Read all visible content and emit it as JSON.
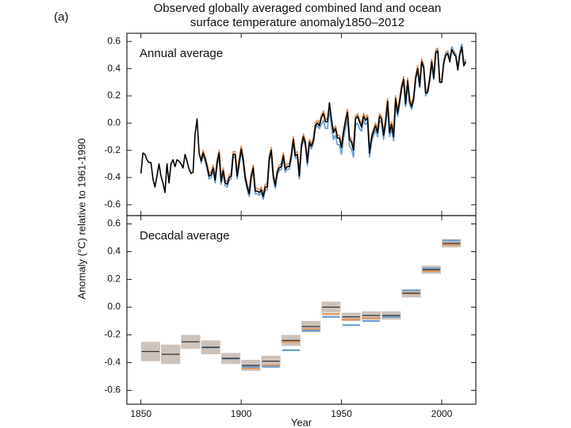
{
  "figure": {
    "label": "(a)",
    "title": [
      "Observed globally averaged combined land and ocean",
      "surface temperature anomaly1850–2012"
    ],
    "ylabel": "Anomaly (°C) relative to 1961-1990"
  },
  "chart_data": [
    {
      "type": "line",
      "annotation": "Annual average",
      "xlim": [
        1843,
        2017
      ],
      "xticks": [
        1850,
        1900,
        1950,
        2000
      ],
      "xtick_labels": false,
      "ylim": [
        -0.68,
        0.66
      ],
      "yticks": [
        -0.6,
        -0.4,
        -0.2,
        {
          "value": 0,
          "label": "0.0"
        },
        0.2,
        0.4,
        0.6
      ],
      "x": [
        1850,
        1851,
        1852,
        1853,
        1854,
        1855,
        1856,
        1857,
        1858,
        1859,
        1860,
        1861,
        1862,
        1863,
        1864,
        1865,
        1866,
        1867,
        1868,
        1869,
        1870,
        1871,
        1872,
        1873,
        1874,
        1875,
        1876,
        1877,
        1878,
        1879,
        1880,
        1881,
        1882,
        1883,
        1884,
        1885,
        1886,
        1887,
        1888,
        1889,
        1890,
        1891,
        1892,
        1893,
        1894,
        1895,
        1896,
        1897,
        1898,
        1899,
        1900,
        1901,
        1902,
        1903,
        1904,
        1905,
        1906,
        1907,
        1908,
        1909,
        1910,
        1911,
        1912,
        1913,
        1914,
        1915,
        1916,
        1917,
        1918,
        1919,
        1920,
        1921,
        1922,
        1923,
        1924,
        1925,
        1926,
        1927,
        1928,
        1929,
        1930,
        1931,
        1932,
        1933,
        1934,
        1935,
        1936,
        1937,
        1938,
        1939,
        1940,
        1941,
        1942,
        1943,
        1944,
        1945,
        1946,
        1947,
        1948,
        1949,
        1950,
        1951,
        1952,
        1953,
        1954,
        1955,
        1956,
        1957,
        1958,
        1959,
        1960,
        1961,
        1962,
        1963,
        1964,
        1965,
        1966,
        1967,
        1968,
        1969,
        1970,
        1971,
        1972,
        1973,
        1974,
        1975,
        1976,
        1977,
        1978,
        1979,
        1980,
        1981,
        1982,
        1983,
        1984,
        1985,
        1986,
        1987,
        1988,
        1989,
        1990,
        1991,
        1992,
        1993,
        1994,
        1995,
        1996,
        1997,
        1998,
        1999,
        2000,
        2001,
        2002,
        2003,
        2004,
        2005,
        2006,
        2007,
        2008,
        2009,
        2010,
        2011,
        2012
      ],
      "series": [
        {
          "color": "#e0915a",
          "values": [
            null,
            null,
            null,
            null,
            null,
            null,
            null,
            null,
            null,
            null,
            null,
            null,
            null,
            null,
            null,
            null,
            null,
            null,
            null,
            null,
            null,
            null,
            null,
            null,
            null,
            null,
            null,
            null,
            null,
            null,
            -0.26,
            -0.2,
            -0.25,
            -0.3,
            -0.37,
            -0.36,
            -0.31,
            -0.4,
            -0.27,
            -0.2,
            -0.41,
            -0.33,
            -0.42,
            -0.43,
            -0.38,
            -0.37,
            -0.21,
            -0.21,
            -0.37,
            -0.27,
            -0.17,
            -0.25,
            -0.38,
            -0.45,
            -0.5,
            -0.37,
            -0.31,
            -0.48,
            -0.48,
            -0.49,
            -0.47,
            -0.52,
            -0.45,
            -0.45,
            -0.24,
            -0.18,
            -0.37,
            -0.44,
            -0.34,
            -0.31,
            -0.3,
            -0.22,
            -0.32,
            -0.3,
            -0.3,
            -0.22,
            -0.1,
            -0.22,
            -0.21,
            -0.37,
            -0.15,
            -0.08,
            -0.13,
            -0.27,
            -0.12,
            -0.15,
            -0.11,
            0.0,
            0.02,
            0.0,
            0.06,
            0.09,
            0.03,
            0.03,
            0.1,
            0.0,
            -0.05,
            -0.02,
            -0.09,
            -0.09,
            -0.16,
            -0.05,
            0.03,
            0.1,
            -0.1,
            -0.12,
            -0.18,
            0.05,
            0.07,
            0.03,
            -0.01,
            0.07,
            0.04,
            0.06,
            -0.2,
            -0.09,
            -0.04,
            0.0,
            -0.05,
            0.07,
            0.05,
            -0.07,
            0.03,
            0.18,
            -0.05,
            0.01,
            -0.08,
            0.2,
            0.09,
            0.18,
            0.28,
            0.34,
            0.16,
            0.33,
            0.18,
            0.14,
            0.2,
            0.35,
            0.42,
            0.29,
            0.47,
            0.43,
            0.24,
            0.25,
            0.34,
            0.47,
            0.35,
            0.54,
            0.55,
            0.32,
            0.32,
            0.46,
            0.52,
            0.53,
            0.47,
            0.56,
            0.53,
            0.51,
            0.41,
            0.52,
            0.58,
            0.44,
            0.47
          ]
        },
        {
          "color": "#6d9fd0",
          "values": [
            null,
            null,
            null,
            null,
            null,
            null,
            null,
            null,
            null,
            null,
            null,
            null,
            null,
            null,
            null,
            null,
            null,
            null,
            null,
            null,
            null,
            null,
            null,
            null,
            null,
            null,
            null,
            null,
            null,
            null,
            -0.3,
            -0.24,
            -0.28,
            -0.34,
            -0.41,
            -0.4,
            -0.35,
            -0.44,
            -0.31,
            -0.24,
            -0.45,
            -0.37,
            -0.46,
            -0.47,
            -0.42,
            -0.41,
            -0.25,
            -0.25,
            -0.41,
            -0.31,
            -0.21,
            -0.29,
            -0.42,
            -0.49,
            -0.54,
            -0.41,
            -0.35,
            -0.52,
            -0.52,
            -0.53,
            -0.51,
            -0.56,
            -0.49,
            -0.49,
            -0.28,
            -0.22,
            -0.41,
            -0.48,
            -0.38,
            -0.35,
            -0.34,
            -0.26,
            -0.36,
            -0.34,
            -0.34,
            -0.26,
            -0.14,
            -0.26,
            -0.25,
            -0.41,
            -0.19,
            -0.12,
            -0.17,
            -0.31,
            -0.16,
            -0.19,
            -0.15,
            -0.04,
            -0.02,
            -0.04,
            -0.01,
            0.02,
            -0.04,
            -0.04,
            0.1,
            -0.02,
            -0.12,
            -0.09,
            -0.16,
            -0.16,
            -0.23,
            -0.12,
            -0.04,
            0.03,
            -0.17,
            -0.19,
            -0.25,
            -0.02,
            0.0,
            -0.04,
            -0.06,
            0.02,
            -0.01,
            0.01,
            -0.25,
            -0.14,
            -0.09,
            -0.05,
            -0.1,
            0.02,
            0.0,
            -0.12,
            -0.02,
            0.13,
            -0.1,
            -0.04,
            -0.13,
            0.15,
            0.05,
            0.14,
            0.25,
            0.3,
            0.12,
            0.3,
            0.14,
            0.1,
            0.17,
            0.32,
            0.39,
            0.26,
            0.44,
            0.4,
            0.2,
            0.22,
            0.31,
            0.44,
            0.32,
            0.51,
            0.54,
            0.3,
            0.3,
            0.45,
            0.51,
            0.52,
            0.46,
            0.56,
            0.52,
            0.5,
            0.4,
            0.52,
            0.58,
            0.44,
            0.46
          ]
        },
        {
          "color": "#000000",
          "values": [
            -0.37,
            -0.22,
            -0.23,
            -0.27,
            -0.29,
            -0.29,
            -0.41,
            -0.47,
            -0.39,
            -0.3,
            -0.39,
            -0.44,
            -0.51,
            -0.3,
            -0.44,
            -0.3,
            -0.27,
            -0.32,
            -0.27,
            -0.28,
            -0.3,
            -0.33,
            -0.23,
            -0.28,
            -0.34,
            -0.37,
            -0.36,
            -0.08,
            0.03,
            -0.22,
            -0.28,
            -0.22,
            -0.26,
            -0.32,
            -0.39,
            -0.38,
            -0.33,
            -0.42,
            -0.29,
            -0.22,
            -0.43,
            -0.35,
            -0.44,
            -0.45,
            -0.4,
            -0.39,
            -0.23,
            -0.23,
            -0.39,
            -0.29,
            -0.19,
            -0.27,
            -0.4,
            -0.47,
            -0.52,
            -0.39,
            -0.33,
            -0.5,
            -0.5,
            -0.51,
            -0.49,
            -0.54,
            -0.47,
            -0.47,
            -0.26,
            -0.2,
            -0.39,
            -0.46,
            -0.36,
            -0.33,
            -0.32,
            -0.24,
            -0.34,
            -0.32,
            -0.32,
            -0.24,
            -0.12,
            -0.24,
            -0.23,
            -0.39,
            -0.17,
            -0.1,
            -0.15,
            -0.29,
            -0.14,
            -0.17,
            -0.13,
            -0.02,
            0.0,
            -0.02,
            0.04,
            0.07,
            0.01,
            0.01,
            0.15,
            0.03,
            -0.07,
            -0.04,
            -0.11,
            -0.11,
            -0.18,
            -0.07,
            0.01,
            0.08,
            -0.12,
            -0.14,
            -0.2,
            0.03,
            0.05,
            0.01,
            -0.03,
            0.05,
            0.02,
            0.04,
            -0.22,
            -0.11,
            -0.06,
            -0.02,
            -0.07,
            0.05,
            0.03,
            -0.09,
            0.01,
            0.16,
            -0.07,
            -0.01,
            -0.1,
            0.18,
            0.07,
            0.16,
            0.26,
            0.32,
            0.14,
            0.31,
            0.16,
            0.12,
            0.18,
            0.33,
            0.4,
            0.27,
            0.45,
            0.41,
            0.22,
            0.23,
            0.32,
            0.45,
            0.33,
            0.52,
            0.53,
            0.3,
            0.3,
            0.44,
            0.5,
            0.51,
            0.45,
            0.54,
            0.51,
            0.49,
            0.39,
            0.5,
            0.56,
            0.42,
            0.45
          ]
        }
      ]
    },
    {
      "type": "decadal",
      "annotation": "Decadal average",
      "xlabel": "Year",
      "xlim": [
        1843,
        2017
      ],
      "xticks": [
        1850,
        1900,
        1950,
        2000
      ],
      "xtick_labels": true,
      "ylim": [
        -0.7,
        0.66
      ],
      "yticks": [
        -0.6,
        -0.4,
        -0.2,
        {
          "value": 0,
          "label": "0.0"
        },
        0.2,
        0.4,
        0.6
      ],
      "band_color": "#c9bcb4",
      "x": [
        1850,
        1860,
        1870,
        1880,
        1890,
        1900,
        1910,
        1920,
        1930,
        1940,
        1950,
        1960,
        1970,
        1980,
        1990,
        2000
      ],
      "series": [
        {
          "color": "#333333",
          "values": [
            -0.32,
            -0.34,
            -0.25,
            -0.29,
            -0.37,
            -0.42,
            -0.39,
            -0.24,
            -0.14,
            0.0,
            -0.07,
            -0.06,
            -0.06,
            0.1,
            0.27,
            0.46
          ],
          "uncertainty": [
            0.07,
            0.07,
            0.05,
            0.05,
            0.04,
            0.04,
            0.04,
            0.04,
            0.04,
            0.04,
            0.03,
            0.03,
            0.03,
            0.03,
            0.03,
            0.03
          ]
        },
        {
          "color": "#e0915a",
          "values": [
            null,
            null,
            null,
            -0.29,
            -0.37,
            -0.44,
            -0.42,
            -0.25,
            -0.16,
            -0.05,
            -0.09,
            -0.08,
            -0.07,
            0.1,
            0.26,
            0.45
          ]
        },
        {
          "color": "#6d9fd0",
          "values": [
            null,
            null,
            null,
            -0.29,
            -0.37,
            -0.43,
            -0.43,
            -0.31,
            -0.17,
            -0.07,
            -0.13,
            -0.1,
            -0.07,
            0.12,
            0.28,
            0.48
          ]
        }
      ]
    }
  ]
}
